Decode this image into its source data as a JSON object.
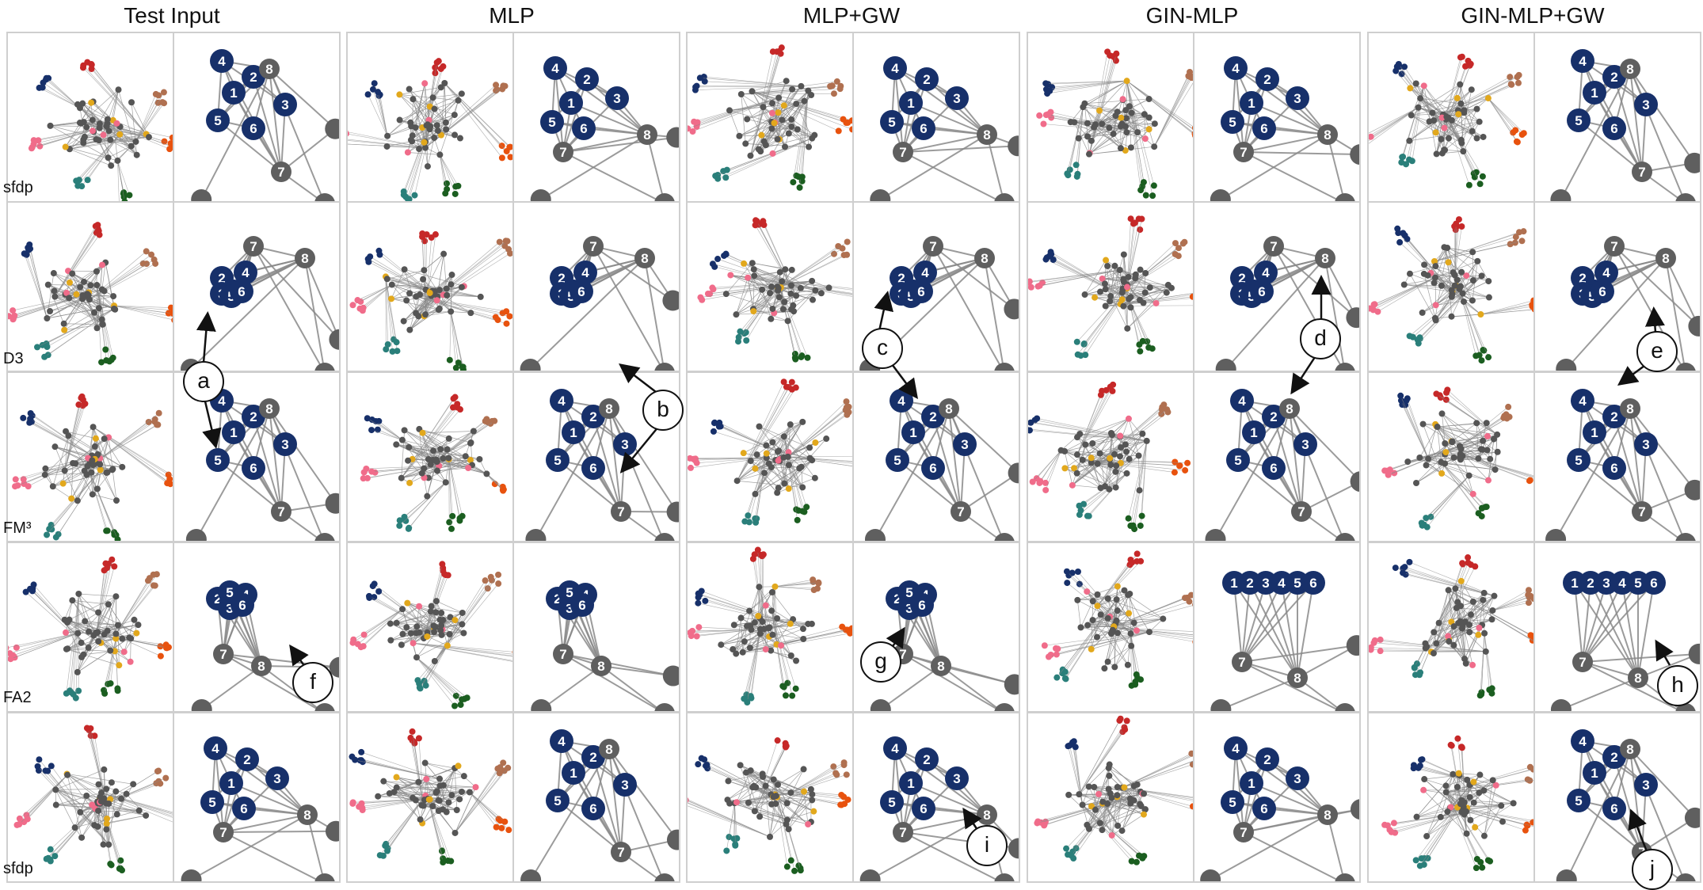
{
  "columns": [
    "Test Input",
    "MLP",
    "MLP+GW",
    "GIN-MLP",
    "GIN-MLP+GW"
  ],
  "rows": [
    "sfdp",
    "D3",
    "FM³",
    "FA2",
    "sfdp"
  ],
  "callouts": [
    "a",
    "b",
    "c",
    "d",
    "e",
    "f",
    "g",
    "h",
    "i",
    "j"
  ],
  "node_labels": [
    "1",
    "2",
    "3",
    "4",
    "5",
    "6",
    "7",
    "8"
  ],
  "colors": {
    "community_node": "#17306a",
    "hub_node": "#5f5f5f",
    "edge": "#8a8a8a",
    "panel_border": "#cfcfcf",
    "cluster_orange": "#e8520e",
    "cluster_green": "#1b5e20",
    "cluster_teal": "#2a7f7a",
    "cluster_pink": "#f06c8a",
    "cluster_yellow": "#e2a81c",
    "cluster_red": "#c62828",
    "cluster_brown": "#b07050",
    "cluster_purple": "#7a2d6a"
  },
  "icons": [
    "circled-letter-callout",
    "arrow-pointer"
  ]
}
